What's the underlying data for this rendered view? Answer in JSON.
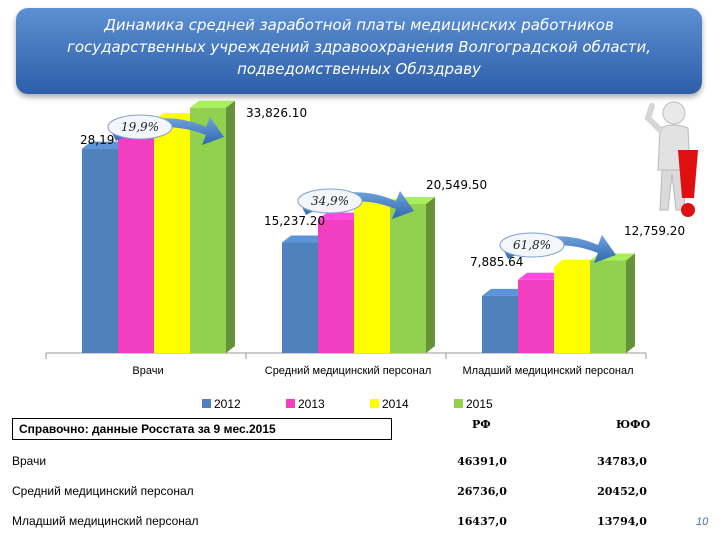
{
  "title": {
    "lines": [
      "Динамика средней заработной платы медицинских работников",
      "государственных учреждений здравоохранения Волгоградской области,",
      "подведомственных Облздраву"
    ]
  },
  "chart_data": {
    "type": "bar",
    "categories": [
      "Врачи",
      "Средний медицинский персонал",
      "Младший медицинский персонал"
    ],
    "series": [
      {
        "name": "2012",
        "color": "#4f81bd",
        "values": [
          28190,
          15237,
          7885
        ]
      },
      {
        "name": "2013",
        "color": "#f03fc0",
        "values": [
          30100,
          18400,
          10100
        ]
      },
      {
        "name": "2014",
        "color": "#ffff00",
        "values": [
          32100,
          20300,
          11900
        ]
      },
      {
        "name": "2015",
        "color": "#92d050",
        "values": [
          33826.1,
          20549.5,
          12759.2
        ]
      }
    ],
    "value_labels": [
      {
        "text": "28,19",
        "category": 0,
        "series": 0
      },
      {
        "text": "33,826.10",
        "category": 0,
        "series": 3
      },
      {
        "text": "15,237.20",
        "category": 1,
        "series": 0
      },
      {
        "text": "20,549.50",
        "category": 1,
        "series": 3
      },
      {
        "text": "7,885.64",
        "category": 2,
        "series": 0
      },
      {
        "text": "12,759.20",
        "category": 2,
        "series": 3
      }
    ],
    "growth_labels": [
      {
        "category": 0,
        "text": "19,9%"
      },
      {
        "category": 1,
        "text": "34,9%"
      },
      {
        "category": 2,
        "text": "61,8%"
      }
    ],
    "legend_position": "bottom",
    "ylim": [
      0,
      40000
    ],
    "grid": false
  },
  "reference": {
    "label": "Справочно: данные Росстата за 9 мес.2015",
    "columns": [
      "РФ",
      "ЮФО"
    ],
    "rows": [
      {
        "name": "Врачи",
        "values": [
          "46391,0",
          "34783,0"
        ]
      },
      {
        "name": "Средний медицинский персонал",
        "values": [
          "26736,0",
          "20452,0"
        ]
      },
      {
        "name": "Младший медицинский персонал",
        "values": [
          "16437,0",
          "13794,0"
        ]
      }
    ]
  },
  "page_number": "10"
}
